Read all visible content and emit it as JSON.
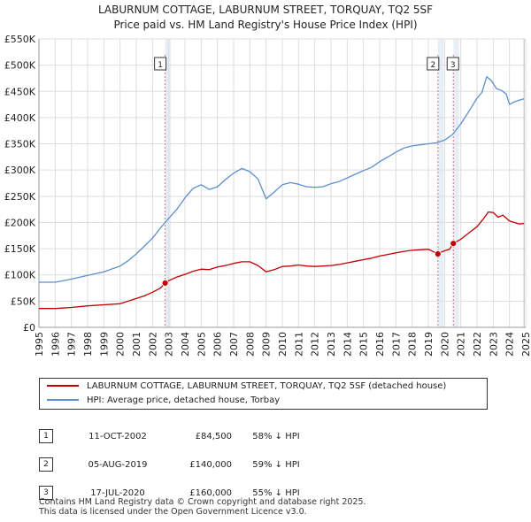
{
  "title_line1": "LABURNUM COTTAGE, LABURNUM STREET, TORQUAY, TQ2 5SF",
  "title_line2": "Price paid vs. HM Land Registry's House Price Index (HPI)",
  "colors": {
    "property": "#c00000",
    "hpi": "#5b8fd0",
    "marker": "#e07070",
    "shade": "#e8eef8"
  },
  "chart_data": {
    "type": "line",
    "xlim": [
      1995,
      2025
    ],
    "ylim": [
      0,
      550000
    ],
    "y_ticks": [
      0,
      50000,
      100000,
      150000,
      200000,
      250000,
      300000,
      350000,
      400000,
      450000,
      500000,
      550000
    ],
    "y_tick_labels": [
      "£0",
      "£50K",
      "£100K",
      "£150K",
      "£200K",
      "£250K",
      "£300K",
      "£350K",
      "£400K",
      "£450K",
      "£500K",
      "£550K"
    ],
    "x_ticks": [
      1995,
      1996,
      1997,
      1998,
      1999,
      2000,
      2001,
      2002,
      2003,
      2004,
      2005,
      2006,
      2007,
      2008,
      2009,
      2010,
      2011,
      2012,
      2013,
      2014,
      2015,
      2016,
      2017,
      2018,
      2019,
      2020,
      2021,
      2022,
      2023,
      2024,
      2025
    ],
    "x_tick_labels": [
      "1995",
      "1996",
      "1997",
      "1998",
      "1999",
      "2000",
      "2001",
      "2002",
      "2003",
      "2004",
      "2005",
      "2006",
      "2007",
      "2008",
      "2009",
      "2010",
      "2011",
      "2012",
      "2013",
      "2014",
      "2015",
      "2016",
      "2017",
      "2018",
      "2019",
      "2020",
      "2021",
      "2022",
      "2023",
      "2024",
      "2025"
    ],
    "series": [
      {
        "name": "LABURNUM COTTAGE, LABURNUM STREET, TORQUAY, TQ2 5SF (detached house)",
        "x": [
          1995,
          1996,
          1997,
          1998,
          1999,
          2000,
          2000.5,
          2001,
          2001.5,
          2002,
          2002.5,
          2002.78,
          2003,
          2003.5,
          2004,
          2004.5,
          2005,
          2005.5,
          2006,
          2006.5,
          2007,
          2007.5,
          2008,
          2008.5,
          2009,
          2009.5,
          2010,
          2010.5,
          2011,
          2011.5,
          2012,
          2012.5,
          2013,
          2013.5,
          2014,
          2014.5,
          2015,
          2015.5,
          2016,
          2016.5,
          2017,
          2017.5,
          2018,
          2018.5,
          2019,
          2019.59,
          2019.75,
          2020,
          2020.3,
          2020.54,
          2021,
          2021.5,
          2022,
          2022.4,
          2022.7,
          2023,
          2023.3,
          2023.6,
          2024,
          2024.3,
          2024.6,
          2024.9
        ],
        "values": [
          36000,
          36000,
          38000,
          41000,
          43000,
          45000,
          50000,
          55000,
          60000,
          67000,
          75000,
          84500,
          89000,
          96000,
          101000,
          107000,
          111000,
          110000,
          115000,
          118000,
          122000,
          125000,
          125000,
          118000,
          106000,
          110000,
          116000,
          117000,
          119000,
          117000,
          116000,
          117000,
          118000,
          120000,
          123000,
          126000,
          129000,
          132000,
          136000,
          139000,
          142000,
          145000,
          147000,
          148000,
          149000,
          140000,
          143000,
          146000,
          149000,
          160000,
          168000,
          180000,
          192000,
          207000,
          220000,
          219000,
          210000,
          214000,
          203000,
          200000,
          197000,
          198000
        ]
      },
      {
        "name": "HPI: Average price, detached house, Torbay",
        "x": [
          1995,
          1996,
          1997,
          1998,
          1999,
          2000,
          2000.5,
          2001,
          2001.5,
          2002,
          2002.5,
          2003,
          2003.5,
          2004,
          2004.5,
          2005,
          2005.5,
          2006,
          2006.5,
          2007,
          2007.5,
          2008,
          2008.5,
          2009,
          2009.5,
          2010,
          2010.5,
          2011,
          2011.5,
          2012,
          2012.5,
          2013,
          2013.5,
          2014,
          2014.5,
          2015,
          2015.5,
          2016,
          2016.5,
          2017,
          2017.5,
          2018,
          2018.5,
          2019,
          2019.5,
          2020,
          2020.5,
          2021,
          2021.5,
          2022,
          2022.3,
          2022.6,
          2022.9,
          2023.2,
          2023.5,
          2023.8,
          2024,
          2024.3,
          2024.6,
          2024.9
        ],
        "values": [
          86000,
          86000,
          92000,
          99000,
          106000,
          117000,
          127000,
          140000,
          155000,
          170000,
          190000,
          208000,
          225000,
          247000,
          265000,
          272000,
          263000,
          268000,
          282000,
          294000,
          303000,
          297000,
          283000,
          245000,
          258000,
          272000,
          276000,
          273000,
          268000,
          267000,
          268000,
          274000,
          278000,
          285000,
          292000,
          299000,
          305000,
          316000,
          325000,
          334000,
          342000,
          346000,
          348000,
          350000,
          352000,
          357000,
          368000,
          388000,
          412000,
          437000,
          448000,
          478000,
          470000,
          455000,
          452000,
          445000,
          425000,
          430000,
          433000,
          436000
        ]
      }
    ],
    "sales": [
      {
        "label": "1",
        "x": 2002.78,
        "value": 84500
      },
      {
        "label": "2",
        "x": 2019.59,
        "value": 140000
      },
      {
        "label": "3",
        "x": 2020.54,
        "value": 160000
      }
    ]
  },
  "legend": {
    "property": "LABURNUM COTTAGE, LABURNUM STREET, TORQUAY, TQ2 5SF (detached house)",
    "hpi": "HPI: Average price, detached house, Torbay"
  },
  "transactions": [
    {
      "num": "1",
      "date": "11-OCT-2002",
      "price": "£84,500",
      "hpi": "58% ↓ HPI"
    },
    {
      "num": "2",
      "date": "05-AUG-2019",
      "price": "£140,000",
      "hpi": "59% ↓ HPI"
    },
    {
      "num": "3",
      "date": "17-JUL-2020",
      "price": "£160,000",
      "hpi": "55% ↓ HPI"
    }
  ],
  "footer_line1": "Contains HM Land Registry data © Crown copyright and database right 2025.",
  "footer_line2": "This data is licensed under the Open Government Licence v3.0."
}
